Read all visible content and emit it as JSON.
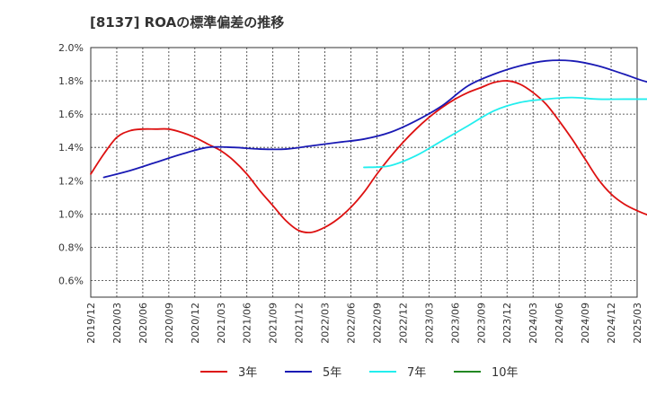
{
  "title": "[8137]  ROAの標準偏差の推移",
  "chart_data": {
    "type": "line",
    "title": "[8137]  ROAの標準偏差の推移",
    "xlabel": "",
    "ylabel": "",
    "x_ticks": [
      "2019/12",
      "2020/03",
      "2020/06",
      "2020/09",
      "2020/12",
      "2021/03",
      "2021/06",
      "2021/09",
      "2021/12",
      "2022/03",
      "2022/06",
      "2022/09",
      "2022/12",
      "2023/03",
      "2023/06",
      "2023/09",
      "2023/12",
      "2024/03",
      "2024/06",
      "2024/09",
      "2024/12",
      "2025/03"
    ],
    "y_ticks": [
      "0.6%",
      "0.8%",
      "1.0%",
      "1.2%",
      "1.4%",
      "1.6%",
      "1.8%",
      "2.0%"
    ],
    "ylim": [
      0.5,
      2.0
    ],
    "grid": true,
    "legend_position": "bottom",
    "series": [
      {
        "name": "3年",
        "color": "#dd1111",
        "values": [
          1.24,
          1.36,
          1.46,
          1.5,
          1.51,
          1.51,
          1.51,
          1.49,
          1.46,
          1.42,
          1.38,
          1.32,
          1.24,
          1.14,
          1.05,
          0.96,
          0.9,
          0.89,
          0.92,
          0.97,
          1.04,
          1.13,
          1.24,
          1.34,
          1.43,
          1.51,
          1.58,
          1.64,
          1.69,
          1.73,
          1.76,
          1.79,
          1.8,
          1.78,
          1.73,
          1.66,
          1.56,
          1.45,
          1.33,
          1.21,
          1.12,
          1.06,
          1.02,
          0.99,
          0.98,
          1.0,
          1.05,
          1.11
        ]
      },
      {
        "name": "5年",
        "color": "#1a1ab4",
        "values": [
          null,
          1.22,
          null,
          1.26,
          null,
          1.31,
          null,
          1.36,
          null,
          1.4,
          null,
          1.4,
          null,
          1.39,
          null,
          1.39,
          null,
          1.41,
          null,
          1.43,
          null,
          1.45,
          null,
          1.49,
          null,
          1.56,
          null,
          1.65,
          null,
          1.77,
          null,
          1.84,
          null,
          1.89,
          null,
          1.92,
          null,
          1.92,
          null,
          1.89,
          null,
          1.84,
          null,
          1.79,
          null,
          1.79,
          null,
          1.79
        ]
      },
      {
        "name": "7年",
        "color": "#22eeee",
        "values": [
          null,
          null,
          null,
          null,
          null,
          null,
          null,
          null,
          null,
          null,
          null,
          null,
          null,
          null,
          null,
          null,
          null,
          null,
          null,
          null,
          null,
          1.28,
          null,
          1.29,
          null,
          1.35,
          null,
          1.44,
          null,
          1.53,
          null,
          1.62,
          null,
          1.67,
          null,
          1.69,
          null,
          1.7,
          null,
          1.69,
          null,
          1.69,
          null,
          1.69,
          null,
          1.69,
          null,
          1.69
        ]
      },
      {
        "name": "10年",
        "color": "#228822",
        "values": []
      }
    ]
  }
}
